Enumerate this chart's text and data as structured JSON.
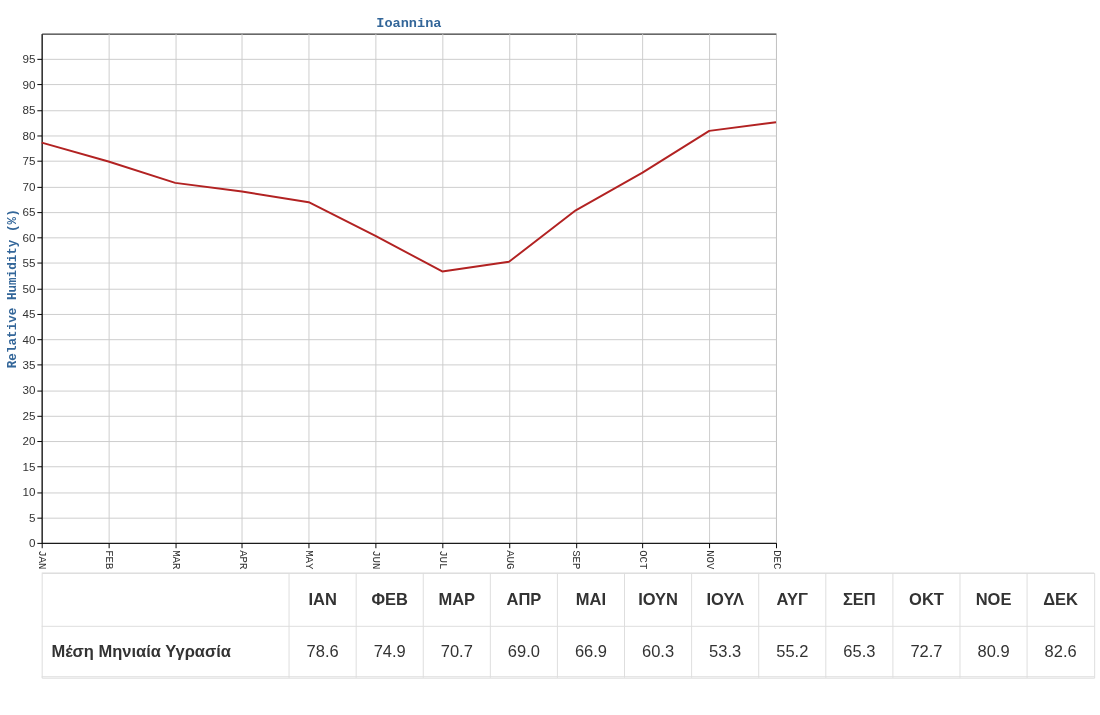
{
  "chart_data": [
    {
      "type": "line",
      "title": "Ioannina",
      "ylabel": "Relative Humidity (%)",
      "categories": [
        "JAN",
        "FEB",
        "MAR",
        "APR",
        "MAY",
        "JUN",
        "JUL",
        "AUG",
        "SEP",
        "OCT",
        "NOV",
        "DEC"
      ],
      "series": [
        {
          "color": "#b22222",
          "values": [
            78.6,
            74.9,
            70.7,
            69.0,
            66.9,
            60.3,
            53.3,
            55.2,
            65.3,
            72.7,
            80.9,
            82.6
          ]
        }
      ],
      "ylim": [
        0,
        100
      ],
      "yticks": [
        0,
        5,
        10,
        15,
        20,
        25,
        30,
        35,
        40,
        45,
        50,
        55,
        60,
        65,
        70,
        75,
        80,
        85,
        90,
        95
      ],
      "grid": true,
      "line_style": "solid"
    },
    {
      "type": "other",
      "categories": [
        "ΙΑΝ",
        "ΦΕΒ",
        "ΜΑΡ",
        "ΑΠΡ",
        "ΜΑΙ",
        "ΙΟΥΝ",
        "ΙΟΥΛ",
        "ΑΥΓ",
        "ΣΕΠ",
        "ΟΚΤ",
        "ΝΟΕ",
        "ΔΕΚ"
      ],
      "series": [
        {
          "name": "Μέση Μηνιαία Υγρασία",
          "values": [
            78.6,
            74.9,
            70.7,
            69.0,
            66.9,
            60.3,
            53.3,
            55.2,
            65.3,
            72.7,
            80.9,
            82.6
          ],
          "value_labels": [
            "78.6",
            "74.9",
            "70.7",
            "69.0",
            "66.9",
            "60.3",
            "53.3",
            "55.2",
            "65.3",
            "72.7",
            "80.9",
            "82.6"
          ]
        }
      ]
    }
  ]
}
